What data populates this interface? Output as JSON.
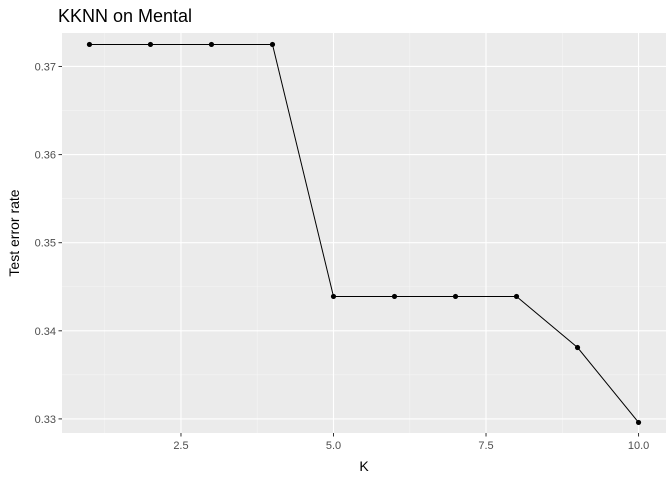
{
  "chart_data": {
    "type": "line",
    "title": "KKNN on Mental",
    "xlabel": "K",
    "ylabel": "Test error rate",
    "xlim": [
      0.55,
      10.45
    ],
    "ylim": [
      0.3284,
      0.3738
    ],
    "x_ticks": [
      2.5,
      5.0,
      7.5,
      10.0
    ],
    "x_tick_labels": [
      "2.5",
      "5.0",
      "7.5",
      "10.0"
    ],
    "y_ticks": [
      0.33,
      0.34,
      0.35,
      0.36,
      0.37
    ],
    "y_tick_labels": [
      "0.33",
      "0.34",
      "0.35",
      "0.36",
      "0.37"
    ],
    "grid": true,
    "legend": "none",
    "colors": {
      "panel": "#ebebeb",
      "grid_major": "#ffffff",
      "grid_minor": "#f5f5f5",
      "line": "#000000",
      "tick": "#333333"
    },
    "series": [
      {
        "x": [
          1,
          2,
          3,
          4,
          5,
          6,
          7,
          8,
          9,
          10
        ],
        "values": [
          0.3725,
          0.3725,
          0.3725,
          0.3725,
          0.3439,
          0.3439,
          0.3439,
          0.3439,
          0.3381,
          0.3296
        ]
      }
    ]
  }
}
